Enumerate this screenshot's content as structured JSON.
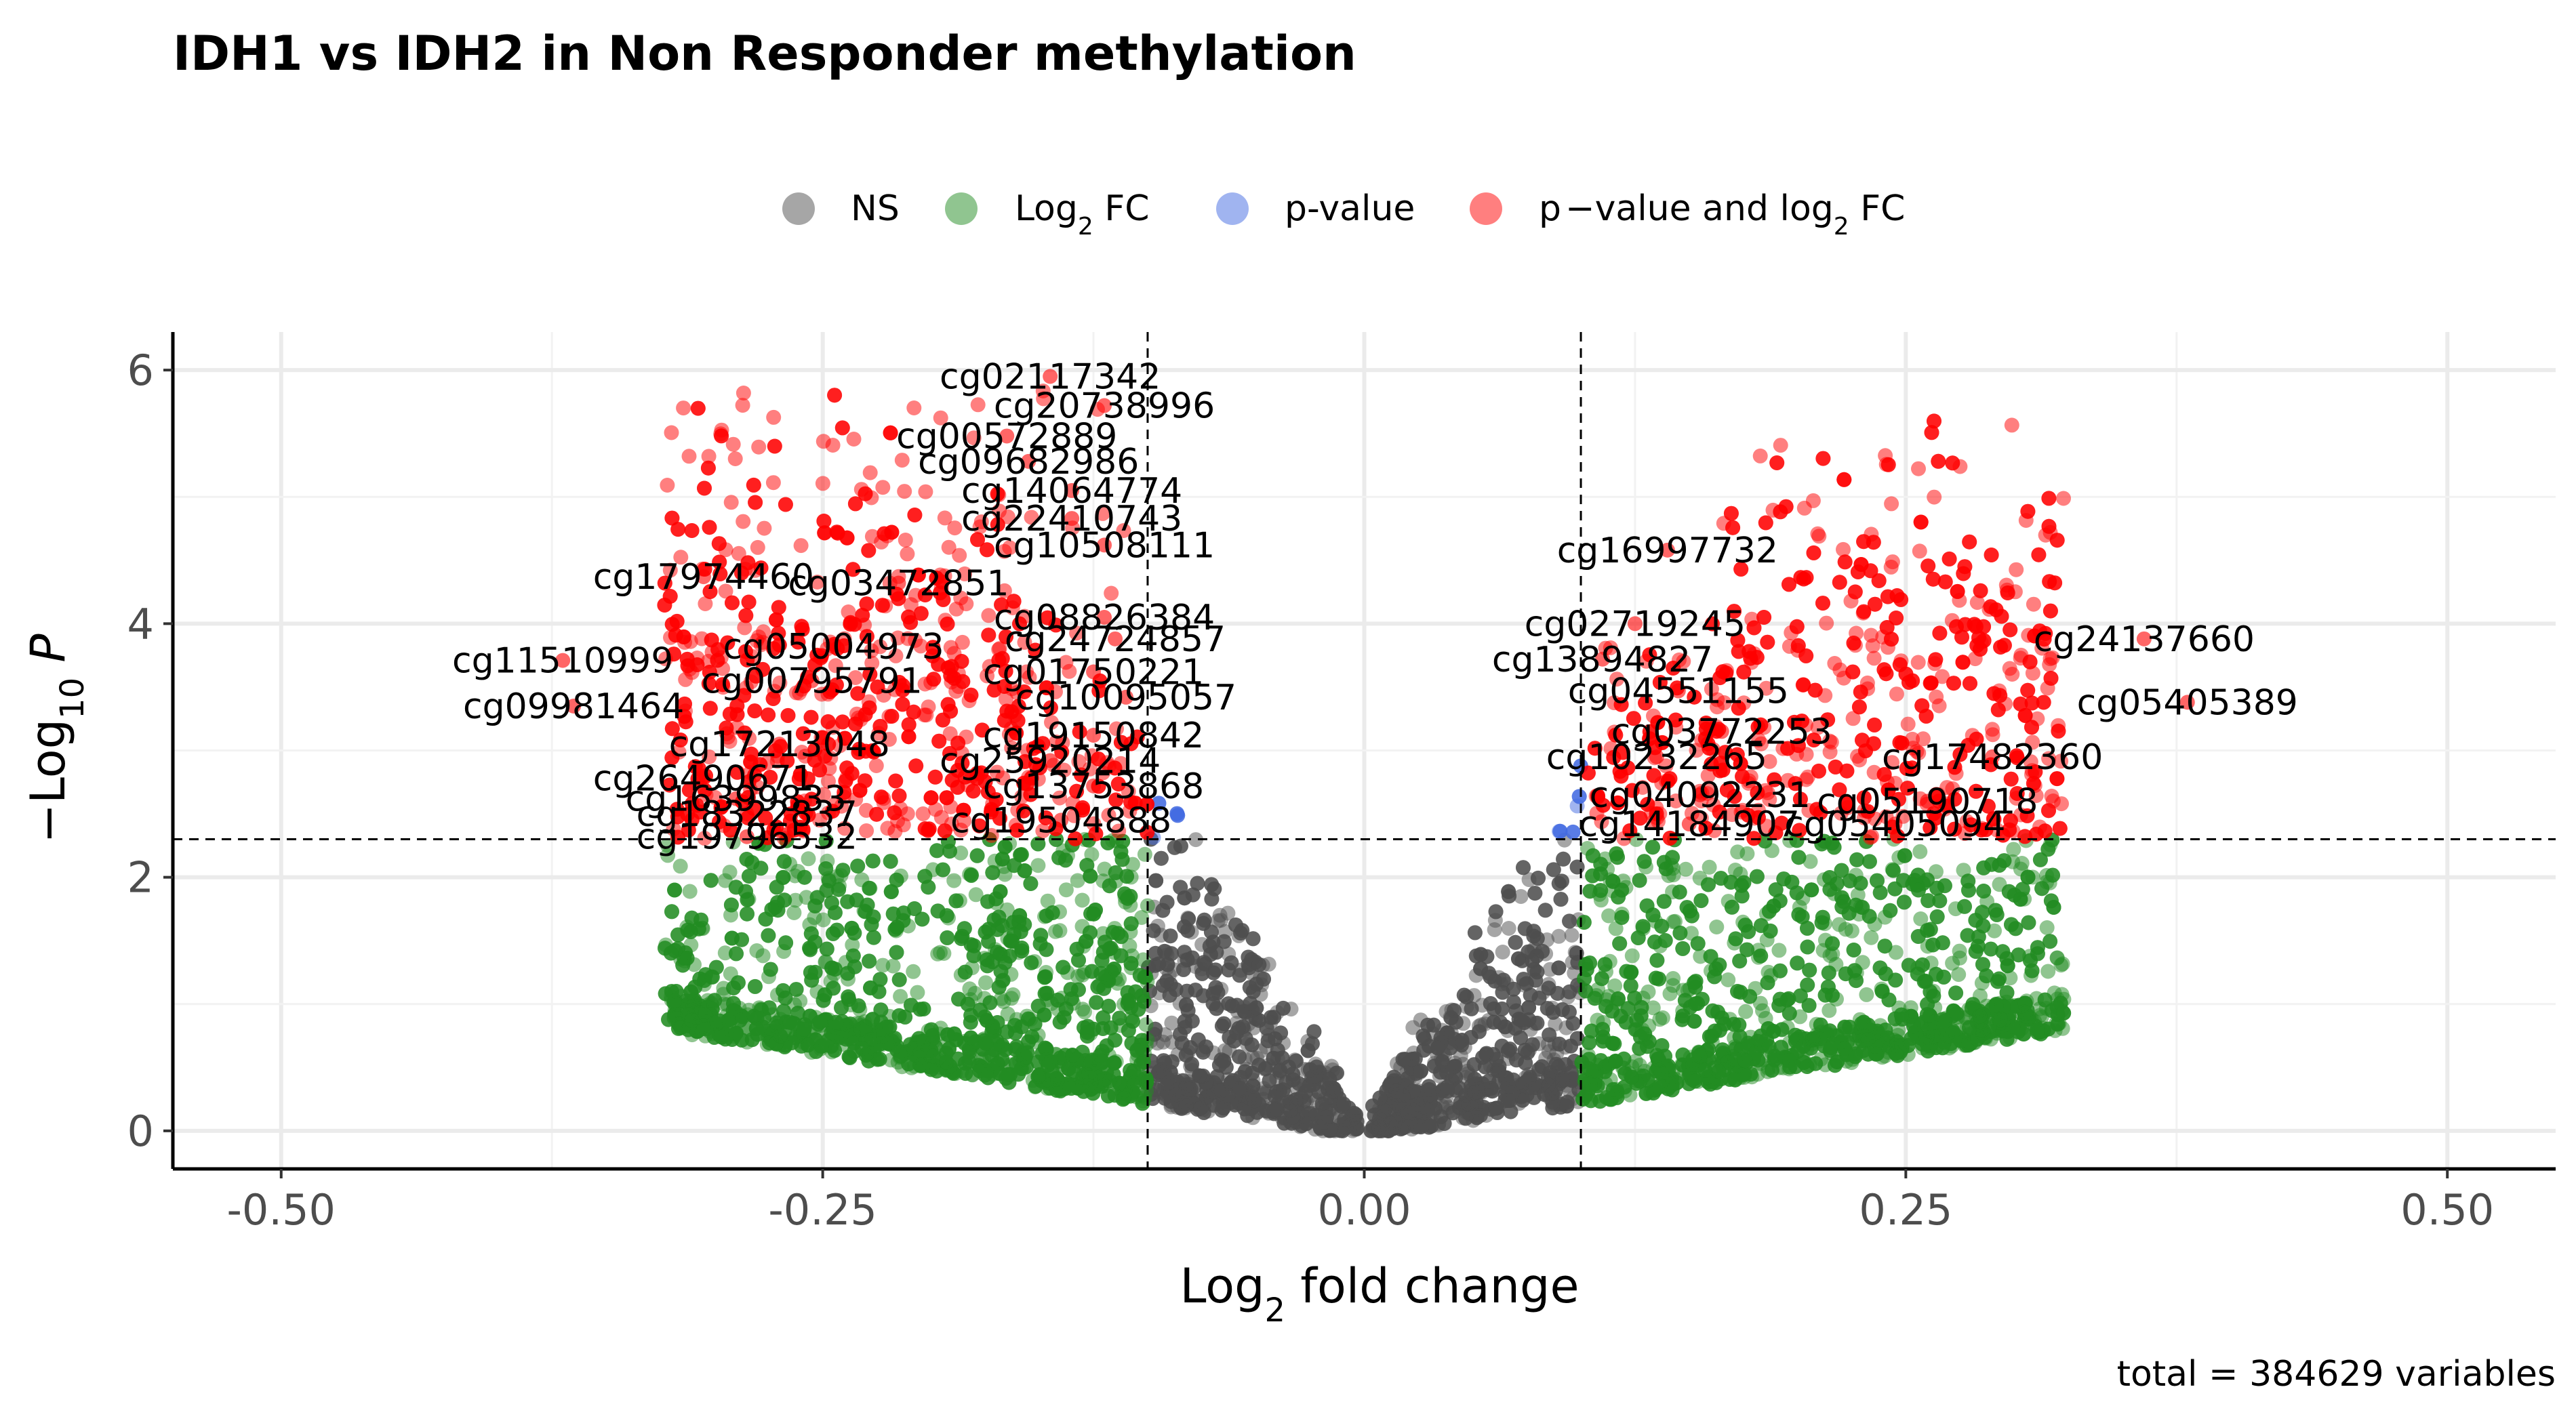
{
  "chart_data": {
    "type": "scatter",
    "title": "IDH1 vs IDH2 in Non Responder methylation",
    "xlabel": "Log2 fold change",
    "ylabel": "−Log10 P",
    "caption": "total = 384629 variables",
    "xlim": [
      -0.55,
      0.55
    ],
    "ylim": [
      -0.3,
      6.3
    ],
    "x_ticks": [
      -0.5,
      -0.25,
      0.0,
      0.25,
      0.5
    ],
    "x_tick_labels": [
      "-0.50",
      "-0.25",
      "0.00",
      "0.25",
      "0.50"
    ],
    "y_ticks": [
      0,
      2,
      4,
      6
    ],
    "y_tick_labels": [
      "0",
      "2",
      "4",
      "6"
    ],
    "fc_cutoff": 0.1,
    "p_cutoff_log10": 2.3,
    "grid": true,
    "legend_position": "top",
    "legend": [
      {
        "key": "NS",
        "label": "NS",
        "color": "#4d4d4d"
      },
      {
        "key": "FC",
        "label": "Log2 FC",
        "color": "#228b22"
      },
      {
        "key": "P",
        "label": "p-value",
        "color": "#4169e1"
      },
      {
        "key": "FC_P",
        "label": "p−value and log2 FC",
        "color": "#ff0000"
      }
    ],
    "labeled_points": [
      {
        "label": "cg02117342",
        "x": -0.145,
        "y": 5.95
      },
      {
        "label": "cg20738996",
        "x": -0.12,
        "y": 5.72
      },
      {
        "label": "cg00572889",
        "x": -0.165,
        "y": 5.48
      },
      {
        "label": "cg09682986",
        "x": -0.155,
        "y": 5.28
      },
      {
        "label": "cg14064774",
        "x": -0.135,
        "y": 5.05
      },
      {
        "label": "cg22410743",
        "x": -0.135,
        "y": 4.83
      },
      {
        "label": "cg10508111",
        "x": -0.12,
        "y": 4.62
      },
      {
        "label": "cg17974460",
        "x": -0.305,
        "y": 4.37
      },
      {
        "label": "cg03472851",
        "x": -0.215,
        "y": 4.32
      },
      {
        "label": "cg08826384",
        "x": -0.12,
        "y": 4.05
      },
      {
        "label": "cg24724857",
        "x": -0.115,
        "y": 3.88
      },
      {
        "label": "cg05004973",
        "x": -0.245,
        "y": 3.82
      },
      {
        "label": "cg01750221",
        "x": -0.125,
        "y": 3.62
      },
      {
        "label": "cg11510999",
        "x": -0.37,
        "y": 3.71
      },
      {
        "label": "cg00795791",
        "x": -0.255,
        "y": 3.55
      },
      {
        "label": "cg10095057",
        "x": -0.11,
        "y": 3.42
      },
      {
        "label": "cg09981464",
        "x": -0.365,
        "y": 3.35
      },
      {
        "label": "cg19150842",
        "x": -0.125,
        "y": 3.12
      },
      {
        "label": "cg17213048",
        "x": -0.27,
        "y": 3.05
      },
      {
        "label": "cg25920214",
        "x": -0.145,
        "y": 2.92
      },
      {
        "label": "cg26490671",
        "x": -0.305,
        "y": 2.78
      },
      {
        "label": "cg13753868",
        "x": -0.125,
        "y": 2.72
      },
      {
        "label": "cg16399833",
        "x": -0.29,
        "y": 2.62
      },
      {
        "label": "cg18322837",
        "x": -0.285,
        "y": 2.5
      },
      {
        "label": "cg19504888",
        "x": -0.14,
        "y": 2.45
      },
      {
        "label": "cg19796532",
        "x": -0.285,
        "y": 2.32
      },
      {
        "label": "cg16997732",
        "x": 0.14,
        "y": 4.58
      },
      {
        "label": "cg02719245",
        "x": 0.125,
        "y": 4.0
      },
      {
        "label": "cg13894827",
        "x": 0.11,
        "y": 3.72
      },
      {
        "label": "cg04551155",
        "x": 0.145,
        "y": 3.47
      },
      {
        "label": "cg03772253",
        "x": 0.165,
        "y": 3.15
      },
      {
        "label": "cg10232265",
        "x": 0.135,
        "y": 2.95
      },
      {
        "label": "cg04092231",
        "x": 0.155,
        "y": 2.65
      },
      {
        "label": "cg14184907",
        "x": 0.15,
        "y": 2.42
      },
      {
        "label": "cg24137660",
        "x": 0.36,
        "y": 3.88
      },
      {
        "label": "cg05405389",
        "x": 0.38,
        "y": 3.38
      },
      {
        "label": "cg17482360",
        "x": 0.29,
        "y": 2.95
      },
      {
        "label": "cg05190718",
        "x": 0.26,
        "y": 2.6
      },
      {
        "label": "cg05405094",
        "x": 0.245,
        "y": 2.42
      }
    ]
  }
}
